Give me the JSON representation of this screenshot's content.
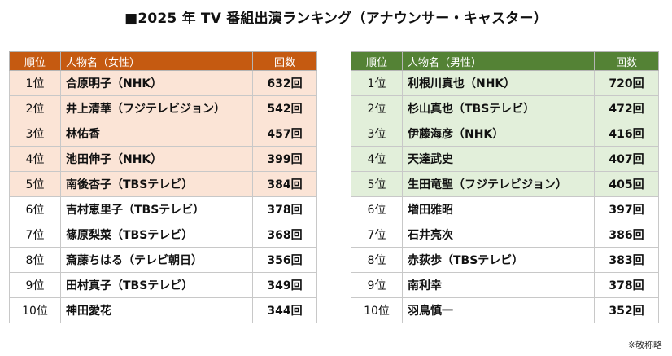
{
  "title": "■2025 年 TV 番組出演ランキング（アナウンサー・キャスター）",
  "colors": {
    "female_header": "#c55a11",
    "female_top5": "#fbe4d6",
    "male_header": "#548235",
    "male_top5": "#e2efda"
  },
  "female": {
    "headers": {
      "rank": "順位",
      "name": "人物名（女性）",
      "count": "回数"
    },
    "rows": [
      {
        "rank": "1位",
        "name": "合原明子（NHK）",
        "count": "632回"
      },
      {
        "rank": "2位",
        "name": "井上清華（フジテレビジョン）",
        "count": "542回"
      },
      {
        "rank": "3位",
        "name": "林佑香",
        "count": "457回"
      },
      {
        "rank": "4位",
        "name": "池田伸子（NHK）",
        "count": "399回"
      },
      {
        "rank": "5位",
        "name": "南後杏子（TBSテレビ）",
        "count": "384回"
      },
      {
        "rank": "6位",
        "name": "吉村恵里子（TBSテレビ）",
        "count": "378回"
      },
      {
        "rank": "7位",
        "name": "篠原梨菜（TBSテレビ）",
        "count": "368回"
      },
      {
        "rank": "8位",
        "name": "斎藤ちはる（テレビ朝日）",
        "count": "356回"
      },
      {
        "rank": "9位",
        "name": "田村真子（TBSテレビ）",
        "count": "349回"
      },
      {
        "rank": "10位",
        "name": "神田愛花",
        "count": "344回"
      }
    ]
  },
  "male": {
    "headers": {
      "rank": "順位",
      "name": "人物名（男性）",
      "count": "回数"
    },
    "rows": [
      {
        "rank": "1位",
        "name": "利根川真也（NHK）",
        "count": "720回"
      },
      {
        "rank": "2位",
        "name": "杉山真也（TBSテレビ）",
        "count": "472回"
      },
      {
        "rank": "3位",
        "name": "伊藤海彦（NHK）",
        "count": "416回"
      },
      {
        "rank": "4位",
        "name": "天達武史",
        "count": "407回"
      },
      {
        "rank": "5位",
        "name": "生田竜聖（フジテレビジョン）",
        "count": "405回"
      },
      {
        "rank": "6位",
        "name": "増田雅昭",
        "count": "397回"
      },
      {
        "rank": "7位",
        "name": "石井亮次",
        "count": "386回"
      },
      {
        "rank": "8位",
        "name": "赤荻歩（TBSテレビ）",
        "count": "383回"
      },
      {
        "rank": "9位",
        "name": "南利幸",
        "count": "378回"
      },
      {
        "rank": "10位",
        "name": "羽鳥慎一",
        "count": "352回"
      }
    ]
  },
  "note": "※敬称略"
}
